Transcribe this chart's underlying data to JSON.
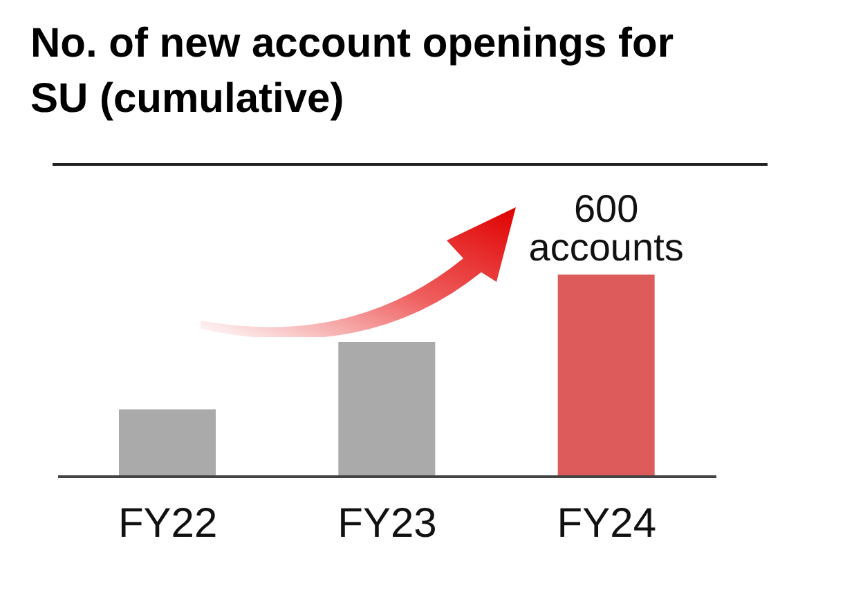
{
  "chart_data": {
    "type": "bar",
    "title": "No. of new account openings for SU (cumulative)",
    "categories": [
      "FY22",
      "FY23",
      "FY24"
    ],
    "values": [
      200,
      400,
      600
    ],
    "colors": [
      "#aaaaaa",
      "#aaaaaa",
      "#dd5b5b"
    ],
    "value_labels": [
      null,
      null,
      "600 accounts"
    ],
    "grid": false,
    "legend": false
  }
}
